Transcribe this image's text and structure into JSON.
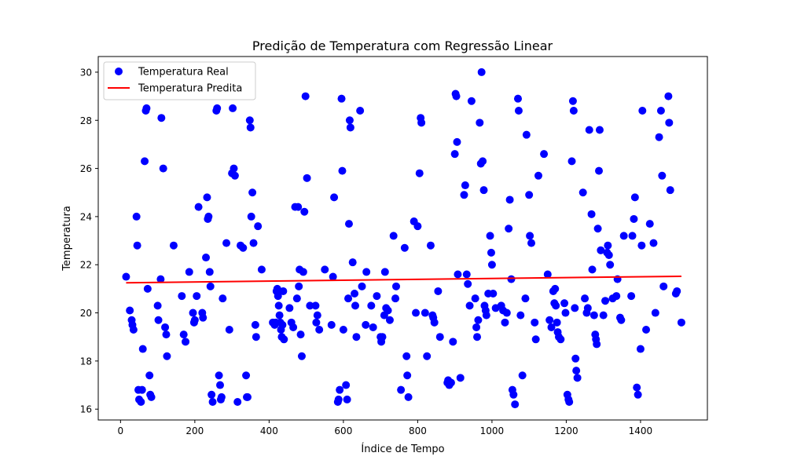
{
  "chart_data": {
    "type": "scatter",
    "title": "Predição de Temperatura com Regressão Linear",
    "xlabel": "Índice de Tempo",
    "ylabel": "Temperatura",
    "xlim": [
      -60,
      1580
    ],
    "ylim": [
      15.55,
      30.65
    ],
    "xticks": [
      0,
      200,
      400,
      600,
      800,
      1000,
      1200,
      1400
    ],
    "yticks": [
      16,
      18,
      20,
      22,
      24,
      26,
      28,
      30
    ],
    "grid": false,
    "legend_position": "upper-left",
    "series": [
      {
        "name": "Temperatura Real",
        "kind": "scatter",
        "color": "#0000ff",
        "points": [
          [
            15,
            21.5
          ],
          [
            25,
            20.1
          ],
          [
            30,
            19.7
          ],
          [
            32,
            19.5
          ],
          [
            35,
            19.3
          ],
          [
            43,
            24.0
          ],
          [
            45,
            22.8
          ],
          [
            48,
            16.8
          ],
          [
            50,
            16.4
          ],
          [
            55,
            16.3
          ],
          [
            58,
            16.8
          ],
          [
            60,
            18.5
          ],
          [
            65,
            26.3
          ],
          [
            68,
            28.4
          ],
          [
            70,
            28.5
          ],
          [
            73,
            21.0
          ],
          [
            78,
            17.4
          ],
          [
            80,
            16.6
          ],
          [
            83,
            16.5
          ],
          [
            100,
            20.3
          ],
          [
            102,
            19.7
          ],
          [
            108,
            21.4
          ],
          [
            110,
            28.1
          ],
          [
            115,
            26.0
          ],
          [
            120,
            19.4
          ],
          [
            123,
            19.1
          ],
          [
            125,
            18.2
          ],
          [
            143,
            22.8
          ],
          [
            165,
            20.7
          ],
          [
            170,
            19.1
          ],
          [
            175,
            18.8
          ],
          [
            185,
            21.7
          ],
          [
            195,
            20.0
          ],
          [
            198,
            19.6
          ],
          [
            200,
            19.7
          ],
          [
            205,
            20.7
          ],
          [
            210,
            24.4
          ],
          [
            220,
            20.0
          ],
          [
            222,
            19.8
          ],
          [
            230,
            22.3
          ],
          [
            233,
            24.8
          ],
          [
            235,
            23.9
          ],
          [
            237,
            24.0
          ],
          [
            240,
            21.7
          ],
          [
            242,
            21.1
          ],
          [
            245,
            16.6
          ],
          [
            248,
            16.3
          ],
          [
            258,
            28.4
          ],
          [
            260,
            28.5
          ],
          [
            265,
            17.4
          ],
          [
            268,
            17.0
          ],
          [
            270,
            16.4
          ],
          [
            272,
            16.5
          ],
          [
            275,
            20.6
          ],
          [
            285,
            22.9
          ],
          [
            293,
            19.3
          ],
          [
            300,
            25.8
          ],
          [
            302,
            28.5
          ],
          [
            305,
            26.0
          ],
          [
            308,
            25.7
          ],
          [
            315,
            16.3
          ],
          [
            323,
            22.8
          ],
          [
            330,
            22.7
          ],
          [
            338,
            17.4
          ],
          [
            340,
            16.5
          ],
          [
            342,
            16.5
          ],
          [
            348,
            28.0
          ],
          [
            350,
            27.7
          ],
          [
            352,
            24.0
          ],
          [
            355,
            25.0
          ],
          [
            358,
            22.9
          ],
          [
            363,
            19.5
          ],
          [
            365,
            19.0
          ],
          [
            370,
            23.6
          ],
          [
            380,
            21.8
          ],
          [
            410,
            19.6
          ],
          [
            415,
            19.5
          ],
          [
            418,
            19.6
          ],
          [
            420,
            20.9
          ],
          [
            422,
            21.0
          ],
          [
            424,
            20.7
          ],
          [
            426,
            20.3
          ],
          [
            428,
            19.9
          ],
          [
            430,
            19.6
          ],
          [
            432,
            19.3
          ],
          [
            434,
            19.0
          ],
          [
            436,
            19.5
          ],
          [
            438,
            20.9
          ],
          [
            440,
            18.9
          ],
          [
            455,
            20.2
          ],
          [
            460,
            19.6
          ],
          [
            465,
            19.4
          ],
          [
            470,
            24.4
          ],
          [
            475,
            20.6
          ],
          [
            478,
            24.4
          ],
          [
            480,
            21.1
          ],
          [
            482,
            21.8
          ],
          [
            485,
            19.1
          ],
          [
            488,
            18.2
          ],
          [
            492,
            21.7
          ],
          [
            495,
            24.2
          ],
          [
            498,
            29.0
          ],
          [
            502,
            25.6
          ],
          [
            510,
            20.3
          ],
          [
            525,
            20.3
          ],
          [
            527,
            19.6
          ],
          [
            530,
            19.9
          ],
          [
            535,
            19.3
          ],
          [
            550,
            21.8
          ],
          [
            568,
            19.5
          ],
          [
            572,
            21.5
          ],
          [
            575,
            24.8
          ],
          [
            585,
            16.3
          ],
          [
            587,
            16.4
          ],
          [
            590,
            16.8
          ],
          [
            595,
            28.9
          ],
          [
            597,
            25.9
          ],
          [
            600,
            19.3
          ],
          [
            607,
            17.0
          ],
          [
            610,
            16.4
          ],
          [
            613,
            20.6
          ],
          [
            615,
            23.7
          ],
          [
            617,
            28.0
          ],
          [
            619,
            27.7
          ],
          [
            625,
            22.1
          ],
          [
            630,
            20.8
          ],
          [
            632,
            20.3
          ],
          [
            635,
            19.0
          ],
          [
            645,
            28.4
          ],
          [
            650,
            21.1
          ],
          [
            660,
            19.5
          ],
          [
            662,
            21.7
          ],
          [
            675,
            20.3
          ],
          [
            680,
            19.4
          ],
          [
            690,
            20.7
          ],
          [
            700,
            19.0
          ],
          [
            702,
            18.8
          ],
          [
            705,
            19.0
          ],
          [
            710,
            19.9
          ],
          [
            712,
            21.7
          ],
          [
            715,
            20.2
          ],
          [
            720,
            20.1
          ],
          [
            725,
            19.7
          ],
          [
            735,
            23.2
          ],
          [
            740,
            20.6
          ],
          [
            742,
            21.1
          ],
          [
            755,
            16.8
          ],
          [
            765,
            22.7
          ],
          [
            770,
            18.2
          ],
          [
            772,
            17.4
          ],
          [
            775,
            16.5
          ],
          [
            790,
            23.8
          ],
          [
            795,
            20.0
          ],
          [
            800,
            23.6
          ],
          [
            805,
            25.8
          ],
          [
            808,
            28.1
          ],
          [
            810,
            27.9
          ],
          [
            820,
            20.0
          ],
          [
            825,
            18.2
          ],
          [
            835,
            22.8
          ],
          [
            840,
            19.9
          ],
          [
            842,
            19.8
          ],
          [
            845,
            19.6
          ],
          [
            855,
            20.9
          ],
          [
            860,
            19.0
          ],
          [
            880,
            17.1
          ],
          [
            882,
            17.2
          ],
          [
            885,
            17.0
          ],
          [
            890,
            17.1
          ],
          [
            895,
            18.8
          ],
          [
            900,
            26.6
          ],
          [
            902,
            29.1
          ],
          [
            904,
            29.0
          ],
          [
            906,
            27.1
          ],
          [
            908,
            21.6
          ],
          [
            915,
            17.3
          ],
          [
            925,
            24.9
          ],
          [
            928,
            25.3
          ],
          [
            932,
            21.6
          ],
          [
            935,
            21.2
          ],
          [
            940,
            20.3
          ],
          [
            945,
            28.8
          ],
          [
            955,
            20.6
          ],
          [
            958,
            19.4
          ],
          [
            960,
            19.0
          ],
          [
            963,
            19.7
          ],
          [
            967,
            27.9
          ],
          [
            970,
            26.2
          ],
          [
            972,
            30.0
          ],
          [
            975,
            26.3
          ],
          [
            978,
            25.1
          ],
          [
            980,
            20.3
          ],
          [
            983,
            20.1
          ],
          [
            985,
            19.9
          ],
          [
            990,
            20.8
          ],
          [
            995,
            23.2
          ],
          [
            998,
            22.5
          ],
          [
            1000,
            22.0
          ],
          [
            1003,
            20.8
          ],
          [
            1010,
            20.2
          ],
          [
            1025,
            20.3
          ],
          [
            1030,
            20.1
          ],
          [
            1035,
            19.6
          ],
          [
            1040,
            20.0
          ],
          [
            1045,
            23.5
          ],
          [
            1048,
            24.7
          ],
          [
            1052,
            21.4
          ],
          [
            1055,
            16.8
          ],
          [
            1058,
            16.6
          ],
          [
            1062,
            16.2
          ],
          [
            1070,
            28.9
          ],
          [
            1072,
            28.4
          ],
          [
            1077,
            19.9
          ],
          [
            1082,
            17.4
          ],
          [
            1090,
            20.6
          ],
          [
            1093,
            27.4
          ],
          [
            1100,
            24.9
          ],
          [
            1102,
            23.2
          ],
          [
            1106,
            22.9
          ],
          [
            1115,
            19.6
          ],
          [
            1118,
            18.9
          ],
          [
            1125,
            25.7
          ],
          [
            1140,
            26.6
          ],
          [
            1150,
            21.6
          ],
          [
            1155,
            19.7
          ],
          [
            1160,
            19.4
          ],
          [
            1165,
            20.9
          ],
          [
            1168,
            20.4
          ],
          [
            1170,
            21.0
          ],
          [
            1172,
            20.3
          ],
          [
            1175,
            19.6
          ],
          [
            1177,
            19.2
          ],
          [
            1180,
            19.0
          ],
          [
            1185,
            18.9
          ],
          [
            1195,
            20.4
          ],
          [
            1198,
            20.0
          ],
          [
            1203,
            16.6
          ],
          [
            1206,
            16.4
          ],
          [
            1208,
            16.3
          ],
          [
            1215,
            26.3
          ],
          [
            1218,
            28.8
          ],
          [
            1220,
            28.4
          ],
          [
            1223,
            20.2
          ],
          [
            1225,
            18.1
          ],
          [
            1227,
            17.6
          ],
          [
            1230,
            17.3
          ],
          [
            1245,
            25.0
          ],
          [
            1250,
            20.6
          ],
          [
            1255,
            20.0
          ],
          [
            1258,
            20.2
          ],
          [
            1262,
            27.6
          ],
          [
            1268,
            24.1
          ],
          [
            1270,
            21.8
          ],
          [
            1275,
            19.9
          ],
          [
            1278,
            19.1
          ],
          [
            1280,
            18.9
          ],
          [
            1282,
            18.7
          ],
          [
            1285,
            23.5
          ],
          [
            1288,
            25.9
          ],
          [
            1290,
            27.6
          ],
          [
            1293,
            22.6
          ],
          [
            1300,
            19.9
          ],
          [
            1305,
            20.5
          ],
          [
            1310,
            22.5
          ],
          [
            1312,
            22.8
          ],
          [
            1315,
            22.4
          ],
          [
            1318,
            22.0
          ],
          [
            1325,
            20.6
          ],
          [
            1335,
            20.7
          ],
          [
            1338,
            21.4
          ],
          [
            1345,
            19.8
          ],
          [
            1348,
            19.7
          ],
          [
            1355,
            23.2
          ],
          [
            1375,
            20.7
          ],
          [
            1378,
            23.2
          ],
          [
            1382,
            23.9
          ],
          [
            1385,
            24.8
          ],
          [
            1390,
            16.9
          ],
          [
            1393,
            16.6
          ],
          [
            1400,
            18.5
          ],
          [
            1403,
            22.8
          ],
          [
            1405,
            28.4
          ],
          [
            1415,
            19.3
          ],
          [
            1425,
            23.7
          ],
          [
            1435,
            22.9
          ],
          [
            1440,
            20.0
          ],
          [
            1450,
            27.3
          ],
          [
            1455,
            28.4
          ],
          [
            1458,
            25.7
          ],
          [
            1462,
            21.1
          ],
          [
            1475,
            29.0
          ],
          [
            1477,
            27.9
          ],
          [
            1480,
            25.1
          ],
          [
            1495,
            20.8
          ],
          [
            1498,
            20.9
          ],
          [
            1510,
            19.6
          ]
        ]
      },
      {
        "name": "Temperatura Predita",
        "kind": "line",
        "color": "#ff0000",
        "x": [
          15,
          1510
        ],
        "y": [
          21.25,
          21.52
        ]
      }
    ]
  }
}
